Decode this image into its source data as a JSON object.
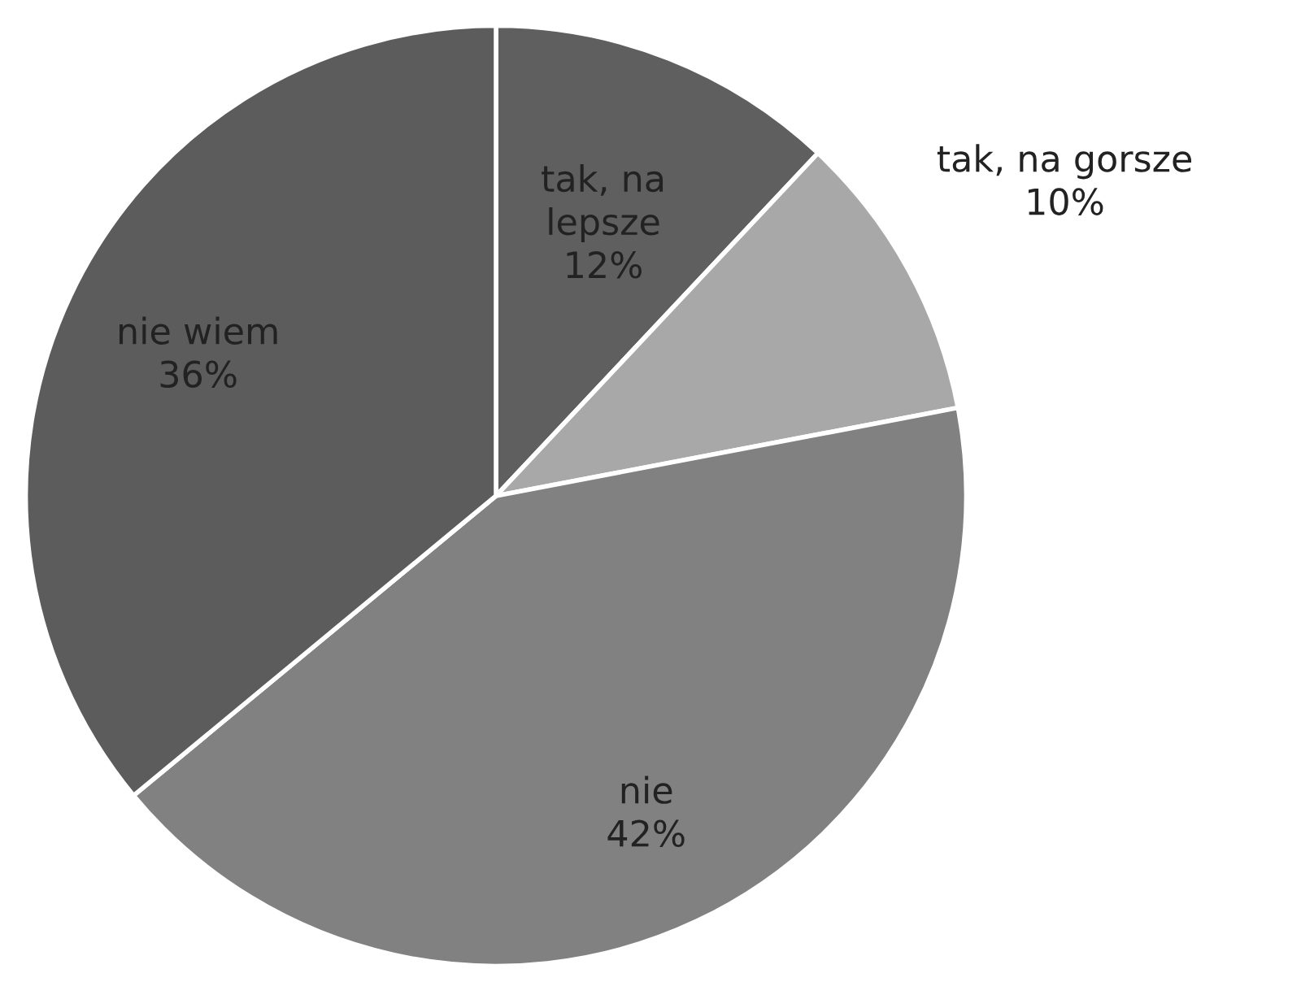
{
  "chart_data": {
    "type": "pie",
    "categories": [
      "tak, na\nlepsze",
      "tak, na gorsze",
      "nie",
      "nie wiem"
    ],
    "values": [
      12,
      10,
      42,
      36
    ],
    "colors": [
      "#5f5f5f",
      "#a8a8a8",
      "#818181",
      "#5c5c5c"
    ],
    "value_labels": [
      "12%",
      "10%",
      "42%",
      "36%"
    ],
    "legend": false
  }
}
